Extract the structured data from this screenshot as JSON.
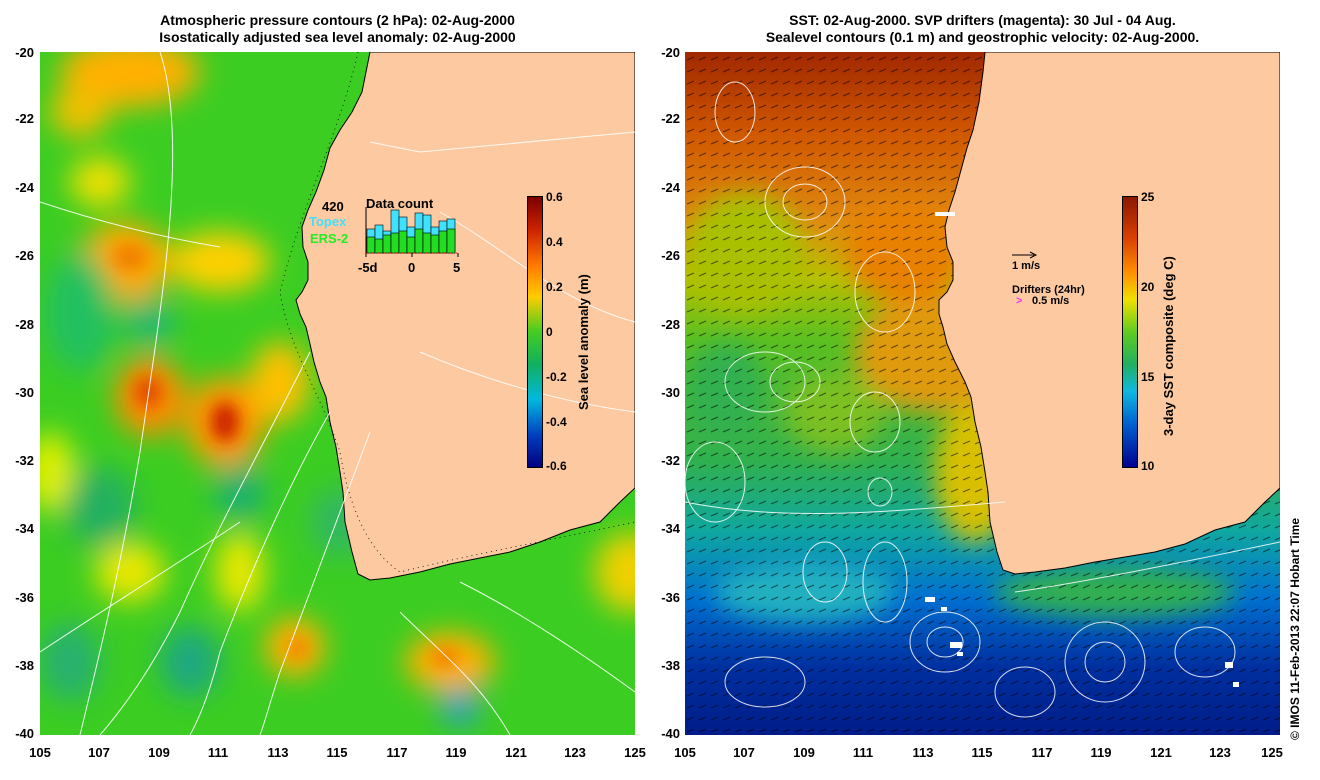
{
  "left_panel": {
    "title_line1": "Atmospheric pressure contours (2 hPa): 02-Aug-2000",
    "title_line2": "Isostatically adjusted sea level anomaly: 02-Aug-2000",
    "colorbar": {
      "label": "Sea level anomaly (m)",
      "ticks": [
        "0.6",
        "0.4",
        "0.2",
        "0",
        "-0.2",
        "-0.4",
        "-0.6"
      ]
    },
    "data_count": {
      "title": "Data count",
      "max": "420",
      "topex_label": "Topex",
      "ers_label": "ERS-2",
      "x_ticks": [
        "-5d",
        "0",
        "5"
      ],
      "topex_color": "#00e0ff",
      "ers_color": "#00dd00"
    }
  },
  "right_panel": {
    "title_line1": "SST: 02-Aug-2000. SVP drifters (magenta): 30 Jul - 04 Aug.",
    "title_line2": "Sealevel contours (0.1 m) and geostrophic velocity: 02-Aug-2000.",
    "colorbar": {
      "label": "3-day SST composite (deg C)",
      "ticks": [
        "25",
        "20",
        "15",
        "10"
      ]
    },
    "velocity_scale": "1 m/s",
    "drifters_label": "Drifters (24hr)",
    "drifter_scale": "0.5 m/s",
    "drifter_color": "#ff33ff"
  },
  "axes": {
    "lat_ticks": [
      "-20",
      "-22",
      "-24",
      "-26",
      "-28",
      "-30",
      "-32",
      "-34",
      "-36",
      "-38",
      "-40"
    ],
    "lon_ticks": [
      "105",
      "107",
      "109",
      "111",
      "113",
      "115",
      "117",
      "119",
      "121",
      "123",
      "125"
    ]
  },
  "credit": "© IMOS 11-Feb-2013 22:07 Hobart Time",
  "colors": {
    "land": "#fdc9a0",
    "sla_green": "#33cc22"
  }
}
